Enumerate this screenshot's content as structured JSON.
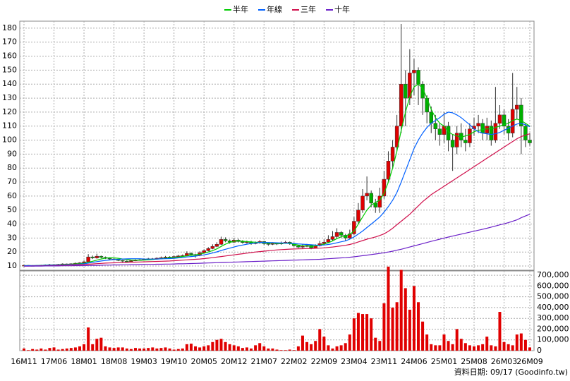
{
  "chart_data": {
    "type": "candlestick",
    "legend_position": "top",
    "grid": true,
    "up_color": "#e00000",
    "down_color": "#00b000",
    "categories": [
      "16M11",
      null,
      null,
      null,
      null,
      null,
      null,
      "17M06",
      null,
      null,
      null,
      null,
      null,
      null,
      "18M01",
      null,
      null,
      null,
      null,
      null,
      null,
      "18M08",
      null,
      null,
      null,
      null,
      null,
      null,
      "19M03",
      null,
      null,
      null,
      null,
      null,
      null,
      "19M10",
      null,
      null,
      null,
      null,
      null,
      null,
      "20M05",
      null,
      null,
      null,
      null,
      null,
      null,
      "20M12",
      null,
      null,
      null,
      null,
      null,
      null,
      "21M07",
      null,
      null,
      null,
      null,
      null,
      null,
      "22M02",
      null,
      null,
      null,
      null,
      null,
      null,
      "22M09",
      null,
      null,
      null,
      null,
      null,
      null,
      "23M04",
      null,
      null,
      null,
      null,
      null,
      null,
      "23M11",
      null,
      null,
      null,
      null,
      null,
      null,
      "24M06",
      null,
      null,
      null,
      null,
      null,
      null,
      "25M01",
      null,
      null,
      null,
      null,
      null,
      null,
      "25M08",
      null,
      null,
      null,
      null,
      null,
      null,
      "26M03",
      null,
      null,
      null,
      null,
      null,
      "26M09"
    ],
    "open": [
      10.4,
      10.5,
      10.3,
      10.2,
      10.4,
      10.6,
      10.8,
      11.0,
      10.9,
      11.2,
      11.5,
      11.3,
      11.6,
      12.0,
      12.3,
      13.0,
      16.5,
      15.8,
      17.0,
      16.2,
      15.5,
      15.0,
      14.6,
      14.0,
      13.5,
      13.2,
      13.8,
      14.2,
      14.5,
      14.8,
      15.2,
      15.0,
      15.6,
      16.0,
      16.4,
      16.2,
      16.8,
      17.2,
      17.5,
      19.0,
      18.2,
      17.6,
      19.5,
      21.0,
      22.5,
      24.0,
      25.5,
      29.0,
      28.0,
      27.0,
      28.5,
      27.5,
      26.8,
      27.2,
      26.0,
      26.5,
      27.5,
      26.0,
      25.5,
      26.2,
      25.8,
      26.5,
      27.0,
      26.0,
      24.5,
      23.5,
      24.0,
      24.8,
      23.0,
      24.5,
      26.0,
      27.0,
      29.0,
      31.0,
      34.0,
      32.0,
      30.0,
      33,
      42,
      50,
      60,
      62,
      55,
      52,
      60,
      72,
      85,
      95,
      110,
      140,
      130,
      148,
      150,
      140,
      130,
      120,
      112,
      108,
      104,
      110,
      100,
      95,
      105,
      100,
      98,
      108,
      110,
      112,
      105,
      110,
      100,
      112,
      118,
      110,
      105,
      122,
      125,
      110,
      100
    ],
    "high": [
      10.8,
      10.7,
      10.6,
      10.7,
      10.9,
      11.1,
      11.4,
      11.3,
      11.5,
      11.9,
      11.8,
      12.0,
      12.5,
      12.8,
      14.0,
      18.5,
      17.5,
      18.8,
      17.5,
      16.8,
      16.0,
      15.6,
      15.0,
      14.4,
      14.0,
      14.3,
      14.8,
      15.0,
      15.4,
      15.8,
      15.7,
      16.2,
      16.8,
      17.2,
      17.0,
      17.6,
      18.0,
      18.3,
      20.5,
      19.8,
      18.8,
      20.5,
      22.0,
      23.5,
      25.5,
      27.0,
      31.0,
      30.5,
      29.0,
      30.0,
      29.5,
      28.5,
      28.2,
      28.0,
      27.5,
      28.5,
      28.0,
      26.8,
      27.0,
      26.8,
      27.5,
      28.0,
      27.5,
      26.5,
      25.0,
      25.5,
      25.8,
      25.2,
      25.5,
      28.0,
      29.0,
      32.0,
      35.0,
      37.0,
      35.0,
      33.0,
      36.0,
      45,
      55,
      65,
      74,
      64,
      58,
      66,
      78,
      92,
      100,
      118,
      183,
      150,
      165,
      158,
      152,
      142,
      132,
      124,
      118,
      112,
      120,
      113,
      104,
      110,
      112,
      108,
      112,
      116,
      118,
      115,
      116,
      114,
      138,
      125,
      122,
      115,
      148,
      138,
      130,
      112,
      105
    ],
    "low": [
      10.2,
      10.1,
      10.0,
      10.0,
      10.2,
      10.4,
      10.6,
      10.6,
      10.7,
      11.0,
      11.0,
      11.1,
      11.4,
      11.8,
      12.0,
      12.8,
      15.0,
      15.2,
      15.5,
      15.0,
      14.3,
      14.0,
      13.5,
      12.8,
      12.6,
      12.9,
      13.5,
      13.8,
      14.1,
      14.4,
      14.5,
      14.7,
      15.2,
      15.6,
      15.6,
      15.9,
      16.4,
      16.6,
      17.0,
      17.6,
      16.0,
      17.0,
      19.0,
      20.5,
      22.0,
      23.5,
      25.0,
      27.0,
      26.0,
      26.5,
      26.8,
      26.0,
      26.0,
      25.2,
      25.5,
      26.0,
      25.0,
      24.5,
      25.0,
      25.0,
      25.2,
      26.0,
      25.2,
      23.8,
      22.8,
      22.5,
      23.5,
      22.0,
      22.5,
      24.0,
      25.0,
      26.5,
      28.0,
      30.0,
      30.0,
      28.0,
      29.0,
      32,
      40,
      48,
      57,
      52,
      48,
      48,
      58,
      70,
      80,
      92,
      105,
      110,
      125,
      132,
      125,
      118,
      112,
      105,
      100,
      96,
      98,
      92,
      78,
      90,
      95,
      92,
      95,
      103,
      105,
      100,
      100,
      96,
      98,
      108,
      104,
      100,
      102,
      115,
      90,
      95,
      96
    ],
    "close": [
      10.5,
      10.3,
      10.2,
      10.4,
      10.6,
      10.8,
      11.0,
      10.9,
      11.2,
      11.5,
      11.3,
      11.6,
      12.0,
      12.3,
      13.0,
      16.5,
      15.8,
      17.0,
      16.2,
      15.5,
      15.0,
      14.6,
      14.0,
      13.5,
      13.2,
      13.8,
      14.2,
      14.5,
      14.8,
      15.2,
      15.0,
      15.6,
      16.0,
      16.4,
      16.2,
      16.8,
      17.2,
      17.5,
      19.0,
      18.2,
      17.6,
      19.5,
      21.0,
      22.5,
      24.0,
      25.5,
      29.0,
      28.0,
      27.0,
      28.5,
      27.5,
      26.8,
      27.2,
      26.0,
      26.5,
      27.5,
      26.0,
      25.5,
      26.2,
      25.8,
      26.5,
      27.0,
      26.0,
      24.5,
      23.5,
      24.0,
      24.8,
      23.0,
      24.5,
      26.0,
      27.0,
      29.0,
      31.0,
      34.0,
      32.0,
      30.0,
      33.0,
      42,
      50,
      60,
      62,
      55,
      52,
      60,
      72,
      85,
      95,
      110,
      140,
      130,
      148,
      150,
      140,
      130,
      120,
      112,
      108,
      104,
      110,
      100,
      95,
      105,
      100,
      98,
      108,
      110,
      112,
      105,
      110,
      100,
      112,
      118,
      110,
      105,
      122,
      125,
      110,
      100,
      98
    ],
    "series": [
      {
        "name": "半年",
        "color": "#00cc00",
        "values": [
          10.3,
          10.3,
          10.3,
          10.4,
          10.5,
          10.6,
          10.7,
          10.8,
          10.9,
          11.1,
          11.2,
          11.3,
          11.5,
          11.7,
          12.0,
          12.7,
          13.4,
          14.2,
          15.0,
          15.6,
          16.0,
          15.8,
          15.5,
          15.0,
          14.6,
          14.3,
          14.2,
          14.1,
          14.2,
          14.4,
          14.6,
          14.9,
          15.2,
          15.5,
          15.8,
          16.1,
          16.4,
          16.8,
          17.3,
          17.6,
          18.0,
          18.5,
          19.2,
          20.0,
          21.0,
          22.3,
          24.0,
          25.6,
          26.8,
          27.6,
          28.0,
          27.8,
          27.4,
          27.2,
          27.0,
          26.8,
          26.6,
          26.4,
          26.3,
          26.2,
          26.2,
          26.3,
          26.1,
          25.6,
          25.0,
          24.6,
          24.3,
          24.2,
          24.4,
          24.9,
          25.6,
          26.6,
          28.0,
          29.6,
          30.9,
          31.6,
          32.6,
          35.0,
          40.0,
          45.0,
          50.0,
          53.5,
          55.5,
          57.0,
          62.0,
          70.0,
          80.0,
          92.0,
          107.0,
          120.0,
          131.0,
          138.0,
          140.0,
          137.0,
          130.0,
          122.0,
          116.0,
          112.0,
          110.0,
          106.0,
          104.0,
          103.0,
          102.0,
          103.0,
          104.0,
          106.0,
          107.0,
          107.5,
          108.0,
          108.0,
          109.0,
          110.0,
          111.0,
          112.0,
          114.0,
          115.0,
          114.0,
          112.0,
          110.0
        ]
      },
      {
        "name": "年線",
        "color": "#0060ff",
        "values": [
          10.2,
          10.3,
          10.3,
          10.4,
          10.4,
          10.5,
          10.6,
          10.7,
          10.8,
          10.9,
          11.0,
          11.1,
          11.2,
          11.4,
          11.6,
          12.1,
          12.6,
          13.1,
          13.6,
          14.0,
          14.3,
          14.6,
          14.8,
          15.0,
          15.1,
          15.2,
          15.2,
          15.2,
          15.0,
          14.9,
          14.9,
          15.0,
          15.1,
          15.2,
          15.3,
          15.5,
          15.8,
          16.1,
          16.5,
          16.8,
          17.1,
          17.5,
          18.0,
          18.6,
          19.3,
          20.1,
          21.1,
          22.0,
          22.8,
          23.6,
          24.4,
          25.0,
          25.6,
          26.1,
          26.5,
          26.8,
          26.9,
          26.8,
          26.7,
          26.6,
          26.5,
          26.4,
          26.3,
          26.1,
          25.8,
          25.6,
          25.4,
          25.2,
          25.0,
          24.9,
          25.0,
          25.4,
          25.9,
          26.6,
          27.3,
          28.0,
          29.2,
          30.8,
          32.8,
          35.0,
          37.5,
          40.0,
          42.5,
          45.0,
          48.5,
          52.5,
          57.0,
          62.5,
          70.0,
          78.0,
          86.0,
          94.0,
          100.0,
          105.0,
          109.0,
          112.0,
          114.0,
          116.0,
          118.5,
          120.0,
          119.5,
          118.0,
          116.0,
          113.5,
          111.0,
          108.0,
          106.0,
          105.0,
          104.5,
          104.0,
          104.5,
          105.5,
          107.0,
          108.5,
          110.0,
          111.5,
          112.0,
          111.0,
          109.5
        ]
      },
      {
        "name": "三年",
        "color": "#d0104c",
        "values": [
          10.0,
          10.0,
          10.1,
          10.1,
          10.2,
          10.2,
          10.3,
          10.4,
          10.5,
          10.6,
          10.7,
          10.8,
          10.9,
          11.0,
          11.1,
          11.3,
          11.5,
          11.7,
          11.9,
          12.1,
          12.2,
          12.3,
          12.4,
          12.5,
          12.6,
          12.7,
          12.8,
          12.9,
          13.0,
          13.1,
          13.2,
          13.3,
          13.4,
          13.5,
          13.6,
          13.8,
          14.0,
          14.2,
          14.4,
          14.6,
          14.8,
          15.0,
          15.3,
          15.6,
          16.0,
          16.4,
          16.8,
          17.2,
          17.6,
          18.0,
          18.4,
          18.8,
          19.2,
          19.6,
          20.0,
          20.3,
          20.6,
          20.9,
          21.2,
          21.5,
          21.7,
          21.9,
          22.1,
          22.2,
          22.3,
          22.4,
          22.5,
          22.6,
          22.7,
          22.8,
          23.0,
          23.3,
          23.6,
          24.0,
          24.4,
          24.8,
          25.4,
          26.2,
          27.2,
          28.2,
          29.2,
          30.0,
          30.8,
          31.8,
          33.0,
          34.8,
          37.0,
          39.5,
          42.0,
          44.5,
          47.0,
          50.0,
          53.0,
          56.0,
          58.5,
          61.0,
          63.0,
          65.0,
          67.0,
          69.0,
          71.0,
          73.0,
          75.0,
          77.0,
          79.0,
          81.0,
          83.0,
          85.0,
          87.0,
          89.0,
          91.0,
          93.0,
          95.0,
          97.0,
          99.0,
          101.0,
          102.5,
          103.5,
          104.5
        ]
      },
      {
        "name": "十年",
        "color": "#6a1fc8",
        "values": [
          10.0,
          10.0,
          10.0,
          10.0,
          10.0,
          10.1,
          10.1,
          10.1,
          10.1,
          10.2,
          10.2,
          10.2,
          10.3,
          10.3,
          10.3,
          10.4,
          10.5,
          10.5,
          10.6,
          10.7,
          10.7,
          10.8,
          10.8,
          10.9,
          10.9,
          11.0,
          11.0,
          11.1,
          11.1,
          11.2,
          11.2,
          11.3,
          11.3,
          11.4,
          11.4,
          11.5,
          11.6,
          11.6,
          11.7,
          11.8,
          11.9,
          12.0,
          12.1,
          12.2,
          12.3,
          12.4,
          12.5,
          12.6,
          12.7,
          12.8,
          12.9,
          13.0,
          13.1,
          13.2,
          13.3,
          13.4,
          13.5,
          13.6,
          13.7,
          13.8,
          13.9,
          14.0,
          14.1,
          14.2,
          14.3,
          14.4,
          14.5,
          14.6,
          14.7,
          14.8,
          15.0,
          15.2,
          15.4,
          15.6,
          15.8,
          16.0,
          16.3,
          16.6,
          17.0,
          17.4,
          17.8,
          18.2,
          18.6,
          19.0,
          19.5,
          20.0,
          20.6,
          21.3,
          22.0,
          22.8,
          23.6,
          24.4,
          25.2,
          26.0,
          26.8,
          27.6,
          28.4,
          29.2,
          30.0,
          30.7,
          31.4,
          32.1,
          32.8,
          33.5,
          34.2,
          34.9,
          35.6,
          36.3,
          37.0,
          37.8,
          38.6,
          39.4,
          40.2,
          41.0,
          42.0,
          43.0,
          44.5,
          45.8,
          47.0
        ]
      }
    ],
    "ylim": [
      7,
      185
    ],
    "yticks": [
      10,
      20,
      30,
      40,
      50,
      60,
      70,
      80,
      90,
      100,
      110,
      120,
      130,
      140,
      150,
      160,
      170,
      180
    ],
    "volume": {
      "color": "#e00000",
      "values": [
        20000,
        5000,
        15000,
        10000,
        20000,
        10000,
        25000,
        30000,
        10000,
        15000,
        20000,
        25000,
        30000,
        40000,
        60000,
        215000,
        60000,
        110000,
        120000,
        40000,
        30000,
        25000,
        30000,
        30000,
        20000,
        15000,
        25000,
        20000,
        20000,
        25000,
        30000,
        20000,
        25000,
        30000,
        20000,
        10000,
        15000,
        20000,
        60000,
        65000,
        40000,
        30000,
        40000,
        50000,
        80000,
        100000,
        110000,
        80000,
        60000,
        50000,
        40000,
        25000,
        30000,
        20000,
        50000,
        70000,
        40000,
        20000,
        20000,
        10000,
        5000,
        5000,
        10000,
        5000,
        40000,
        140000,
        80000,
        60000,
        90000,
        200000,
        130000,
        50000,
        20000,
        40000,
        50000,
        70000,
        150000,
        300000,
        350000,
        340000,
        340000,
        300000,
        120000,
        90000,
        440000,
        780000,
        400000,
        450000,
        750000,
        580000,
        380000,
        600000,
        450000,
        270000,
        150000,
        60000,
        50000,
        50000,
        150000,
        90000,
        60000,
        200000,
        110000,
        70000,
        50000,
        40000,
        50000,
        60000,
        130000,
        50000,
        40000,
        360000,
        80000,
        60000,
        50000,
        150000,
        160000,
        100000,
        30000
      ],
      "ylim": [
        0,
        740000
      ],
      "yticks": [
        0,
        {
          "value": 100000,
          "label": "100,000"
        },
        {
          "value": 200000,
          "label": "200,000"
        },
        {
          "value": 300000,
          "label": "300,000"
        },
        {
          "value": 400000,
          "label": "400,000"
        },
        {
          "value": 500000,
          "label": "500,000"
        },
        {
          "value": 600000,
          "label": "600,000"
        },
        {
          "value": 700000,
          "label": "700,000"
        }
      ]
    }
  },
  "footer": "資料日期: 09/17  (Goodinfo.tw)"
}
